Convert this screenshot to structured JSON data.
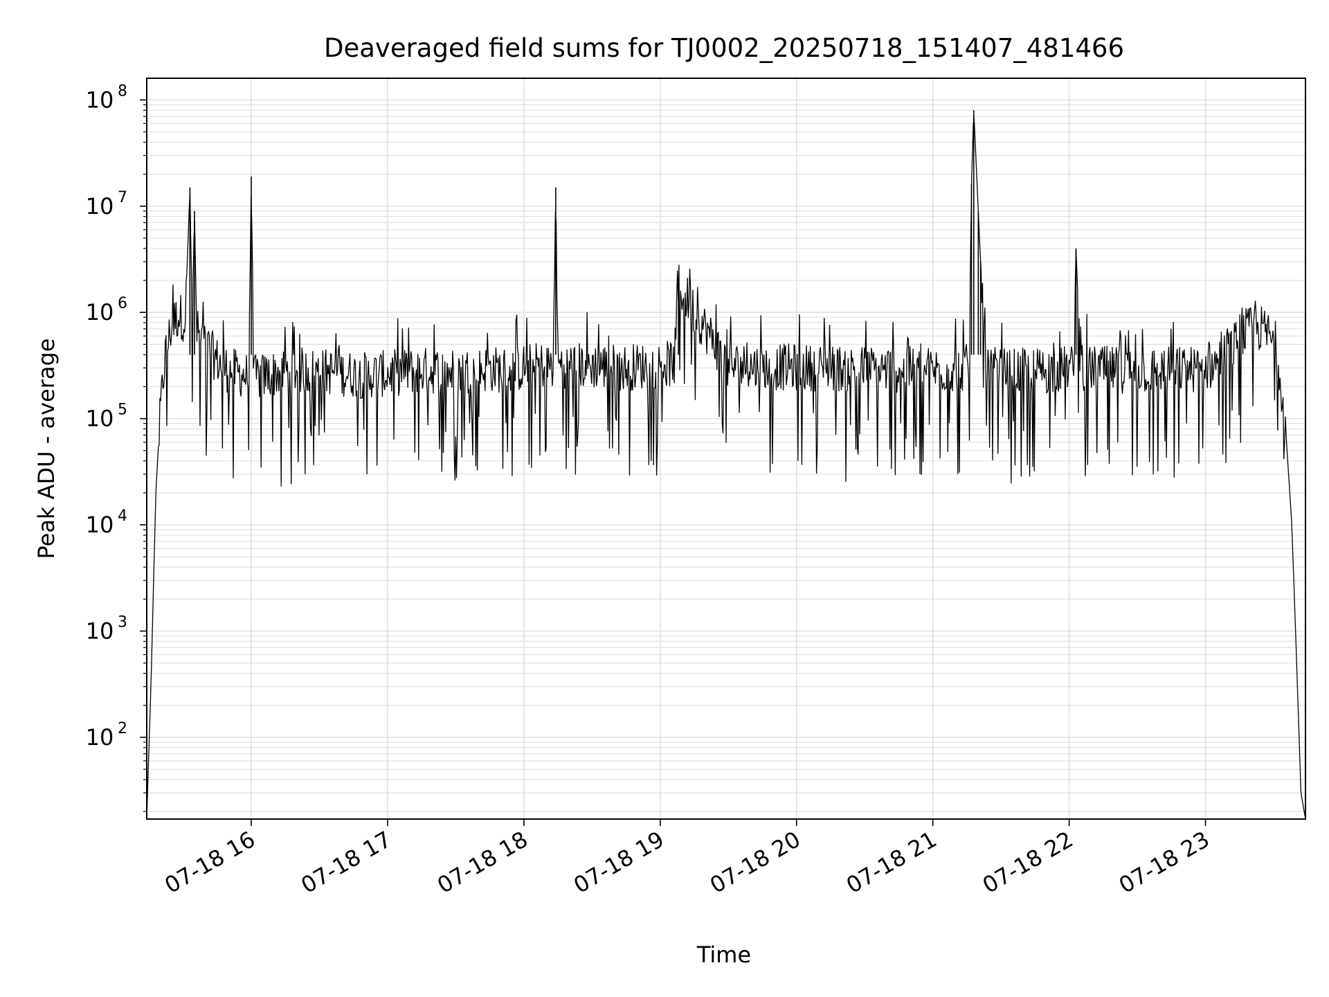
{
  "chart_data": {
    "type": "line",
    "title": "Deaveraged field sums for TJ0002_20250718_151407_481466",
    "xlabel": "Time",
    "ylabel": "Peak ADU - average",
    "yscale": "log",
    "ylim": [
      17,
      160000000
    ],
    "xlim": [
      "07-18 15:14",
      "07-18 23:44"
    ],
    "grid": true,
    "line_color": "#000000",
    "grid_color": "#e0e0e0",
    "x_ticks": [
      {
        "t": "07-18 16:00",
        "label": "07-18 16"
      },
      {
        "t": "07-18 17:00",
        "label": "07-18 17"
      },
      {
        "t": "07-18 18:00",
        "label": "07-18 18"
      },
      {
        "t": "07-18 19:00",
        "label": "07-18 19"
      },
      {
        "t": "07-18 20:00",
        "label": "07-18 20"
      },
      {
        "t": "07-18 21:00",
        "label": "07-18 21"
      },
      {
        "t": "07-18 22:00",
        "label": "07-18 22"
      },
      {
        "t": "07-18 23:00",
        "label": "07-18 23"
      }
    ],
    "y_ticks": [
      {
        "value": 100,
        "base": "10",
        "exp": "2"
      },
      {
        "value": 1000,
        "base": "10",
        "exp": "3"
      },
      {
        "value": 10000,
        "base": "10",
        "exp": "4"
      },
      {
        "value": 100000,
        "base": "10",
        "exp": "5"
      },
      {
        "value": 1000000,
        "base": "10",
        "exp": "6"
      },
      {
        "value": 10000000,
        "base": "10",
        "exp": "7"
      },
      {
        "value": 100000000,
        "base": "10",
        "exp": "8"
      }
    ],
    "series": [
      {
        "x": [
          "07-18 15:14",
          "07-18 15:16",
          "07-18 15:18",
          "07-18 15:20",
          "07-18 15:22",
          "07-18 15:25",
          "07-18 15:28",
          "07-18 15:31",
          "07-18 15:33",
          "07-18 15:34",
          "07-18 15:35",
          "07-18 15:36",
          "07-18 15:38",
          "07-18 15:42",
          "07-18 15:46",
          "07-18 15:50",
          "07-18 15:55",
          "07-18 15:59",
          "07-18 16:00",
          "07-18 16:01",
          "07-18 16:10",
          "07-18 16:20",
          "07-18 16:35",
          "07-18 16:50",
          "07-18 17:00",
          "07-18 17:15",
          "07-18 17:30",
          "07-18 17:45",
          "07-18 17:54",
          "07-18 18:00",
          "07-18 18:10",
          "07-18 18:13",
          "07-18 18:14",
          "07-18 18:15",
          "07-18 18:30",
          "07-18 18:45",
          "07-18 19:00",
          "07-18 19:07",
          "07-18 19:08",
          "07-18 19:30",
          "07-18 20:00",
          "07-18 20:30",
          "07-18 21:00",
          "07-18 21:10",
          "07-18 21:16",
          "07-18 21:17",
          "07-18 21:18",
          "07-18 21:20",
          "07-18 21:21",
          "07-18 21:24",
          "07-18 21:35",
          "07-18 21:50",
          "07-18 22:02",
          "07-18 22:03",
          "07-18 22:05",
          "07-18 22:30",
          "07-18 23:00",
          "07-18 23:05",
          "07-18 23:12",
          "07-18 23:18",
          "07-18 23:24",
          "07-18 23:28",
          "07-18 23:32",
          "07-18 23:35",
          "07-18 23:38",
          "07-18 23:40",
          "07-18 23:42",
          "07-18 23:44"
        ],
        "y": [
          17,
          400,
          20000,
          120000,
          400000,
          800000,
          1000000,
          900000,
          15000000,
          800000,
          9000000,
          700000,
          600000,
          450000,
          350000,
          300000,
          280000,
          260000,
          19000000,
          250000,
          280000,
          300000,
          290000,
          270000,
          280000,
          300000,
          290000,
          310000,
          300000,
          320000,
          340000,
          330000,
          15000000,
          340000,
          330000,
          320000,
          340000,
          350000,
          1900000,
          330000,
          320000,
          310000,
          300000,
          310000,
          320000,
          16000000,
          80000000,
          9000000,
          3000000,
          300000,
          290000,
          300000,
          310000,
          4000000,
          310000,
          300000,
          310000,
          350000,
          500000,
          700000,
          750000,
          650000,
          400000,
          100000,
          10000,
          600,
          30,
          17
        ]
      }
    ]
  }
}
